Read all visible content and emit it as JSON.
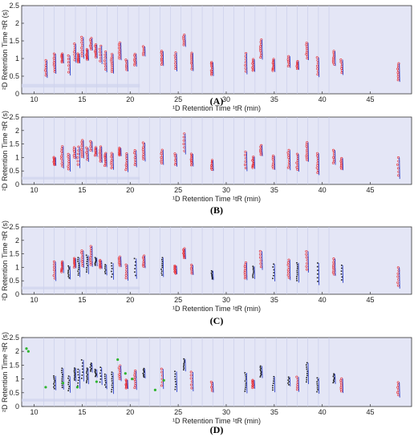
{
  "figure": {
    "panels": [
      "(A)",
      "(B)",
      "(C)",
      "(D)"
    ]
  },
  "colors": {
    "background": "#e4e6f6",
    "red_marker": "#e8242a",
    "blue_contour": "#2b3fc9",
    "black_marker": "#1a1a1a",
    "green_marker": "#2fb52f",
    "axis": "#333333"
  },
  "chart_data": [
    {
      "type": "scatter",
      "panel": "(A)",
      "xlabel": "¹D Retention Time ¹tR (min)",
      "ylabel": "²D Retention Time ²tR (s)",
      "xlim": [
        8.7,
        49.3
      ],
      "ylim": [
        0,
        2.5
      ],
      "x_ticks": [
        10,
        15,
        20,
        25,
        30,
        35,
        40,
        45
      ],
      "y_ticks": [
        0,
        0.5,
        1,
        1.5,
        2,
        2.5
      ],
      "grid": false,
      "peaks_x": [
        11.2,
        12.1,
        12.9,
        13.6,
        14.2,
        14.6,
        15.0,
        15.5,
        15.9,
        16.4,
        16.9,
        17.4,
        18.1,
        18.9,
        19.6,
        20.5,
        21.4,
        23.3,
        24.7,
        25.6,
        26.4,
        28.5,
        32.0,
        32.8,
        33.6,
        34.9,
        36.5,
        37.4,
        38.4,
        39.5,
        41.2,
        42.0,
        47.9
      ],
      "peaks_y": [
        0.7,
        0.85,
        1.0,
        0.8,
        1.15,
        1.0,
        1.3,
        1.1,
        1.4,
        1.2,
        1.1,
        0.9,
        0.85,
        1.2,
        0.8,
        0.95,
        1.2,
        1.0,
        0.9,
        1.5,
        0.9,
        0.7,
        0.85,
        0.8,
        1.25,
        0.8,
        0.9,
        0.8,
        1.2,
        0.75,
        1.0,
        0.75,
        0.6
      ],
      "series": [
        {
          "name": "",
          "color": "red",
          "x": [
            11.2,
            12.1,
            12.9,
            13.6,
            14.2,
            14.6,
            15.0,
            15.5,
            15.9,
            16.4,
            16.9,
            17.4,
            18.1,
            18.9,
            19.6,
            20.5,
            21.4,
            23.3,
            24.7,
            25.6,
            26.4,
            28.5,
            32.0,
            32.8,
            33.6,
            34.9,
            36.5,
            37.4,
            38.4,
            39.5,
            41.2,
            42.0,
            47.9
          ],
          "y": [
            0.7,
            0.85,
            1.0,
            0.8,
            1.15,
            1.0,
            1.3,
            1.1,
            1.4,
            1.2,
            1.1,
            0.9,
            0.85,
            1.2,
            0.8,
            0.95,
            1.2,
            1.0,
            0.9,
            1.5,
            0.9,
            0.7,
            0.85,
            0.8,
            1.25,
            0.8,
            0.9,
            0.8,
            1.2,
            0.75,
            1.0,
            0.75,
            0.6
          ]
        }
      ]
    },
    {
      "type": "scatter",
      "panel": "(B)",
      "xlabel": "¹D Retention Time ¹tR (min)",
      "ylabel": "²D Retention Time ²tR (s)",
      "xlim": [
        8.7,
        49.3
      ],
      "ylim": [
        0,
        2.5
      ],
      "x_ticks": [
        10,
        15,
        20,
        25,
        30,
        35,
        40,
        45
      ],
      "y_ticks": [
        0,
        0.5,
        1,
        1.5,
        2,
        2.5
      ],
      "grid": false,
      "series": [
        {
          "name": "",
          "color": "red",
          "x": [
            12.1,
            12.9,
            13.6,
            14.2,
            14.6,
            15.0,
            15.5,
            15.9,
            16.4,
            16.9,
            17.4,
            18.1,
            18.9,
            19.6,
            20.5,
            21.4,
            23.3,
            24.7,
            25.6,
            26.4,
            28.5,
            32.0,
            32.8,
            33.6,
            34.9,
            36.5,
            37.4,
            38.4,
            39.5,
            41.2,
            42.0,
            47.9
          ],
          "y": [
            0.85,
            1.0,
            0.8,
            1.15,
            1.0,
            1.3,
            1.1,
            1.4,
            1.2,
            1.1,
            0.9,
            0.85,
            1.2,
            0.8,
            0.95,
            1.2,
            1.0,
            0.9,
            1.5,
            0.9,
            0.7,
            0.85,
            0.8,
            1.25,
            0.8,
            0.9,
            0.8,
            1.2,
            0.75,
            1.0,
            0.75,
            0.6
          ]
        }
      ]
    },
    {
      "type": "scatter",
      "panel": "(C)",
      "xlabel": "¹D Retention Time ¹tR (min)",
      "ylabel": "²D Retention Time ²tR (s)",
      "xlim": [
        8.7,
        49.3
      ],
      "ylim": [
        0,
        2.5
      ],
      "x_ticks": [
        10,
        15,
        20,
        25,
        30,
        35,
        40,
        45
      ],
      "y_ticks": [
        0,
        0.5,
        1,
        1.5,
        2,
        2.5
      ],
      "grid": false,
      "series": [
        {
          "name": "",
          "color": "red",
          "x": [
            12.1,
            12.9,
            14.2,
            15.0,
            15.9,
            16.9,
            18.9,
            19.6,
            21.4,
            24.7,
            25.6,
            26.4,
            32.0,
            33.6,
            36.5,
            38.4,
            41.2,
            47.9
          ],
          "y": [
            0.85,
            1.0,
            1.15,
            1.3,
            1.4,
            1.1,
            1.2,
            0.8,
            1.2,
            0.9,
            1.5,
            0.9,
            0.85,
            1.25,
            0.9,
            1.2,
            1.0,
            0.6
          ]
        },
        {
          "name": "",
          "color": "black",
          "x": [
            13.6,
            14.6,
            15.5,
            16.4,
            17.4,
            18.1,
            20.5,
            23.3,
            28.5,
            32.8,
            34.9,
            37.4,
            39.5,
            42.0
          ],
          "y": [
            0.8,
            1.0,
            1.1,
            1.2,
            0.9,
            0.85,
            0.95,
            1.0,
            0.7,
            0.8,
            0.8,
            0.8,
            0.75,
            0.75
          ]
        }
      ]
    },
    {
      "type": "scatter",
      "panel": "(D)",
      "xlabel": "¹D Retention Time ¹tR (min)",
      "ylabel": "²D Retention Time ²tR (s)",
      "xlim": [
        8.7,
        49.3
      ],
      "ylim": [
        0,
        2.5
      ],
      "x_ticks": [
        10,
        15,
        20,
        25,
        30,
        35,
        40,
        45
      ],
      "y_ticks": [
        0,
        0.5,
        1,
        1.5,
        2,
        2.5
      ],
      "grid": false,
      "series": [
        {
          "name": "",
          "color": "black",
          "x": [
            12.1,
            12.9,
            13.6,
            14.2,
            14.6,
            15.0,
            15.5,
            15.9,
            16.4,
            16.9,
            17.4,
            18.1,
            21.4,
            24.7,
            25.6,
            32.0,
            33.6,
            34.9,
            36.5,
            38.4,
            39.5,
            41.2
          ],
          "y": [
            0.85,
            1.0,
            0.8,
            1.15,
            1.0,
            1.3,
            1.1,
            1.4,
            1.2,
            1.1,
            0.9,
            0.85,
            1.2,
            0.9,
            1.5,
            0.85,
            1.25,
            0.8,
            0.9,
            1.2,
            0.75,
            1.0
          ]
        },
        {
          "name": "",
          "color": "red",
          "x": [
            18.9,
            19.6,
            20.5,
            23.3,
            26.4,
            28.5,
            32.8,
            37.4,
            42.0,
            47.9
          ],
          "y": [
            1.2,
            0.8,
            0.95,
            1.0,
            0.9,
            0.7,
            0.8,
            0.8,
            0.75,
            0.6
          ]
        },
        {
          "name": "",
          "color": "green",
          "x": [
            9.2,
            9.4,
            11.2,
            13.0,
            14.5,
            16.5,
            18.7,
            19.5,
            20.2,
            22.6,
            23.5
          ],
          "y": [
            2.1,
            2.0,
            0.7,
            0.85,
            0.7,
            0.9,
            1.7,
            1.2,
            1.0,
            0.6,
            0.95
          ]
        }
      ]
    }
  ]
}
